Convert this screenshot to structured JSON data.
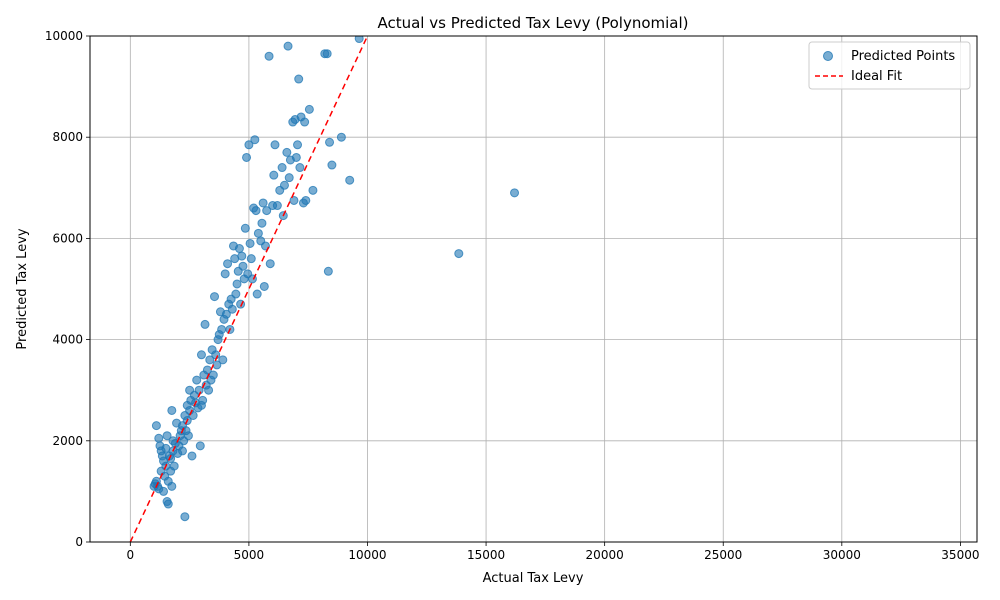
{
  "chart_data": {
    "type": "scatter",
    "title": "Actual vs Predicted Tax Levy (Polynomial)",
    "xlabel": "Actual Tax Levy",
    "ylabel": "Predicted Tax Levy",
    "xlim": [
      -1700,
      35700
    ],
    "ylim": [
      0,
      10000
    ],
    "xticks": [
      0,
      5000,
      10000,
      15000,
      20000,
      25000,
      30000,
      35000
    ],
    "yticks": [
      0,
      2000,
      4000,
      6000,
      8000,
      10000
    ],
    "grid": true,
    "legend_position": "top-right",
    "colors": {
      "points": "#1f77b4",
      "ideal": "#ff0000",
      "grid": "#b0b0b0"
    },
    "series": [
      {
        "name": "Predicted Points",
        "kind": "scatter",
        "points": [
          [
            1000,
            1100
          ],
          [
            1050,
            1150
          ],
          [
            1100,
            1200
          ],
          [
            1150,
            1100
          ],
          [
            1200,
            1050
          ],
          [
            1100,
            2300
          ],
          [
            1200,
            2050
          ],
          [
            1250,
            1900
          ],
          [
            1300,
            1800
          ],
          [
            1300,
            1400
          ],
          [
            1350,
            1700
          ],
          [
            1400,
            1600
          ],
          [
            1450,
            1300
          ],
          [
            1400,
            1000
          ],
          [
            1500,
            1500
          ],
          [
            1500,
            1850
          ],
          [
            1550,
            2100
          ],
          [
            1550,
            800
          ],
          [
            1600,
            750
          ],
          [
            1600,
            1200
          ],
          [
            1650,
            1700
          ],
          [
            1700,
            1650
          ],
          [
            1700,
            1400
          ],
          [
            1750,
            2600
          ],
          [
            1750,
            1100
          ],
          [
            1800,
            1800
          ],
          [
            1800,
            2000
          ],
          [
            1850,
            1500
          ],
          [
            1900,
            1950
          ],
          [
            1950,
            2350
          ],
          [
            2000,
            1750
          ],
          [
            2050,
            1900
          ],
          [
            2100,
            2100
          ],
          [
            2150,
            2200
          ],
          [
            2200,
            2300
          ],
          [
            2200,
            1800
          ],
          [
            2250,
            2000
          ],
          [
            2300,
            500
          ],
          [
            2300,
            2500
          ],
          [
            2350,
            2200
          ],
          [
            2400,
            2700
          ],
          [
            2400,
            2400
          ],
          [
            2450,
            2100
          ],
          [
            2500,
            3000
          ],
          [
            2500,
            2600
          ],
          [
            2550,
            2800
          ],
          [
            2600,
            1700
          ],
          [
            2650,
            2500
          ],
          [
            2700,
            2900
          ],
          [
            2750,
            2750
          ],
          [
            2800,
            3200
          ],
          [
            2850,
            2650
          ],
          [
            2900,
            3000
          ],
          [
            2950,
            1900
          ],
          [
            3000,
            3700
          ],
          [
            3000,
            2700
          ],
          [
            3050,
            2800
          ],
          [
            3100,
            3300
          ],
          [
            3150,
            4300
          ],
          [
            3200,
            3100
          ],
          [
            3250,
            3400
          ],
          [
            3300,
            3000
          ],
          [
            3350,
            3600
          ],
          [
            3400,
            3200
          ],
          [
            3450,
            3800
          ],
          [
            3500,
            3300
          ],
          [
            3550,
            4850
          ],
          [
            3600,
            3700
          ],
          [
            3650,
            3500
          ],
          [
            3700,
            4000
          ],
          [
            3750,
            4100
          ],
          [
            3800,
            4550
          ],
          [
            3850,
            4200
          ],
          [
            3900,
            3600
          ],
          [
            3950,
            4400
          ],
          [
            4000,
            5300
          ],
          [
            4050,
            4500
          ],
          [
            4100,
            5500
          ],
          [
            4150,
            4700
          ],
          [
            4200,
            4200
          ],
          [
            4250,
            4800
          ],
          [
            4300,
            4600
          ],
          [
            4350,
            5850
          ],
          [
            4400,
            5600
          ],
          [
            4450,
            4900
          ],
          [
            4500,
            5100
          ],
          [
            4550,
            5350
          ],
          [
            4600,
            5800
          ],
          [
            4650,
            4700
          ],
          [
            4700,
            5650
          ],
          [
            4750,
            5450
          ],
          [
            4800,
            5200
          ],
          [
            4850,
            6200
          ],
          [
            4900,
            7600
          ],
          [
            4950,
            5300
          ],
          [
            5000,
            7850
          ],
          [
            5050,
            5900
          ],
          [
            5100,
            5600
          ],
          [
            5150,
            5200
          ],
          [
            5200,
            6600
          ],
          [
            5250,
            7950
          ],
          [
            5300,
            6550
          ],
          [
            5350,
            4900
          ],
          [
            5400,
            6100
          ],
          [
            5500,
            5950
          ],
          [
            5550,
            6300
          ],
          [
            5600,
            6700
          ],
          [
            5650,
            5050
          ],
          [
            5700,
            5850
          ],
          [
            5750,
            6550
          ],
          [
            5850,
            9600
          ],
          [
            5900,
            5500
          ],
          [
            6000,
            6650
          ],
          [
            6050,
            7250
          ],
          [
            6100,
            7850
          ],
          [
            6200,
            6650
          ],
          [
            6300,
            6950
          ],
          [
            6400,
            7400
          ],
          [
            6450,
            6450
          ],
          [
            6500,
            7050
          ],
          [
            6600,
            7700
          ],
          [
            6650,
            9800
          ],
          [
            6700,
            7200
          ],
          [
            6750,
            7550
          ],
          [
            6850,
            8300
          ],
          [
            6900,
            6750
          ],
          [
            6950,
            8350
          ],
          [
            7000,
            7600
          ],
          [
            7050,
            7850
          ],
          [
            7100,
            9150
          ],
          [
            7150,
            7400
          ],
          [
            7200,
            8400
          ],
          [
            7300,
            6700
          ],
          [
            7350,
            8300
          ],
          [
            7400,
            6750
          ],
          [
            7550,
            8550
          ],
          [
            7700,
            6950
          ],
          [
            8200,
            9650
          ],
          [
            8300,
            9650
          ],
          [
            8350,
            5350
          ],
          [
            8400,
            7900
          ],
          [
            8500,
            7450
          ],
          [
            8900,
            8000
          ],
          [
            9250,
            7150
          ],
          [
            9650,
            9950
          ],
          [
            13850,
            5700
          ],
          [
            16200,
            6900
          ]
        ]
      },
      {
        "name": "Ideal Fit",
        "kind": "line",
        "style": "dashed",
        "points": [
          [
            0,
            0
          ],
          [
            10000,
            10000
          ]
        ]
      }
    ]
  }
}
